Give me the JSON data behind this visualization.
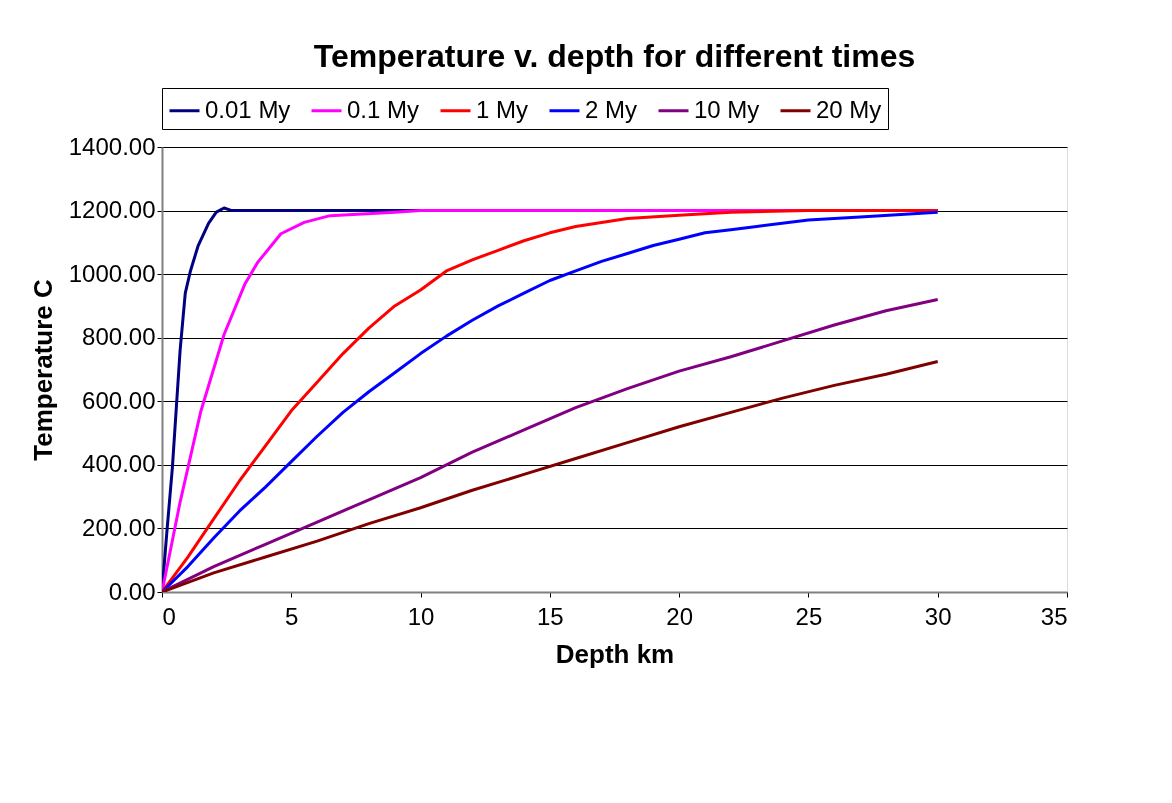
{
  "chart_data": {
    "type": "line",
    "title": "Temperature v. depth for different times",
    "xlabel": "Depth km",
    "ylabel": "Temperature C",
    "xlim": [
      0,
      35
    ],
    "xticks": [
      0,
      5,
      10,
      15,
      20,
      25,
      30,
      35
    ],
    "ylim": [
      0,
      1400
    ],
    "yticks": [
      {
        "value": 0,
        "label": "0.00"
      },
      {
        "value": 200,
        "label": "200.00"
      },
      {
        "value": 400,
        "label": "400.00"
      },
      {
        "value": 600,
        "label": "600.00"
      },
      {
        "value": 800,
        "label": "800.00"
      },
      {
        "value": 1000,
        "label": "1000.00"
      },
      {
        "value": 1200,
        "label": "1200.00"
      },
      {
        "value": 1400,
        "label": "1400.00"
      }
    ],
    "grid": "y",
    "legend": "top",
    "marker": "none",
    "line_style": "solid",
    "series": [
      {
        "name": "0.01 My",
        "color": "#000080",
        "x": [
          0,
          0.2,
          0.4,
          0.7,
          0.9,
          1.1,
          1.4,
          1.8,
          2.1,
          2.4,
          2.7,
          30
        ],
        "values": [
          0,
          200,
          390,
          760,
          940,
          1010,
          1090,
          1160,
          1195,
          1208,
          1200,
          1200
        ]
      },
      {
        "name": "0.1 My",
        "color": "#ff00ff",
        "x": [
          0,
          0.7,
          1.5,
          2.4,
          3.2,
          3.7,
          4.6,
          5.5,
          6.5,
          9,
          10,
          30
        ],
        "values": [
          0,
          283,
          568,
          810,
          968,
          1037,
          1127,
          1163,
          1184,
          1195,
          1200,
          1200
        ]
      },
      {
        "name": "1 My",
        "color": "#ff0000",
        "x": [
          0,
          1,
          2,
          3,
          4,
          5,
          6,
          7,
          8,
          9,
          10,
          11,
          12,
          13,
          14,
          15,
          16,
          18,
          20,
          22,
          25,
          30
        ],
        "values": [
          0,
          110,
          230,
          350,
          460,
          570,
          660,
          750,
          830,
          900,
          950,
          1010,
          1045,
          1075,
          1105,
          1130,
          1150,
          1175,
          1185,
          1195,
          1200,
          1200
        ]
      },
      {
        "name": "2 My",
        "color": "#0000ff",
        "x": [
          0,
          1,
          2,
          3,
          4,
          5,
          6,
          7,
          8,
          9,
          10,
          11,
          12,
          13,
          14,
          15,
          16,
          17,
          18,
          19,
          20,
          21,
          22,
          23,
          25,
          27,
          30
        ],
        "values": [
          0,
          80,
          170,
          255,
          330,
          410,
          490,
          565,
          630,
          690,
          750,
          805,
          855,
          900,
          940,
          980,
          1010,
          1040,
          1065,
          1090,
          1110,
          1130,
          1140,
          1150,
          1170,
          1180,
          1195
        ]
      },
      {
        "name": "10 My",
        "color": "#800080",
        "x": [
          0,
          2,
          4,
          6,
          8,
          10,
          12,
          14,
          16,
          18,
          20,
          22,
          24,
          26,
          28,
          30
        ],
        "values": [
          0,
          80,
          150,
          220,
          290,
          360,
          440,
          510,
          580,
          640,
          695,
          740,
          790,
          840,
          885,
          920
        ]
      },
      {
        "name": "20 My",
        "color": "#800000",
        "x": [
          0,
          2,
          4,
          6,
          8,
          10,
          12,
          14,
          16,
          18,
          20,
          22,
          24,
          26,
          28,
          30
        ],
        "values": [
          0,
          60,
          110,
          160,
          215,
          265,
          320,
          370,
          420,
          470,
          520,
          565,
          610,
          650,
          685,
          725
        ]
      }
    ]
  }
}
